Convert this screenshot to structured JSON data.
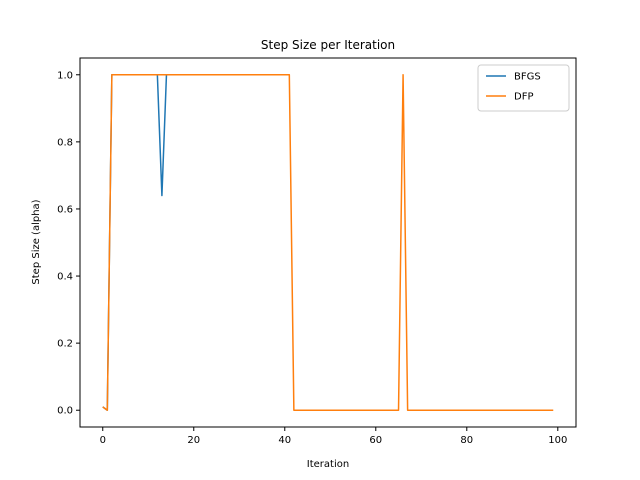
{
  "chart_data": {
    "type": "line",
    "title": "Step Size per Iteration",
    "xlabel": "Iteration",
    "ylabel": "Step Size (alpha)",
    "xlim": [
      -5,
      104
    ],
    "ylim": [
      -0.05,
      1.05
    ],
    "xticks": [
      0,
      20,
      40,
      60,
      80,
      100
    ],
    "yticks": [
      0.0,
      0.2,
      0.4,
      0.6,
      0.8,
      1.0
    ],
    "xtick_labels": [
      "0",
      "20",
      "40",
      "60",
      "80",
      "100"
    ],
    "ytick_labels": [
      "0.0",
      "0.2",
      "0.4",
      "0.6",
      "0.8",
      "1.0"
    ],
    "grid": false,
    "legend": "top-right",
    "series": [
      {
        "name": "BFGS",
        "color": "#1f77b4",
        "x": [
          0,
          1,
          2,
          3,
          4,
          5,
          6,
          7,
          8,
          9,
          10,
          11,
          12,
          13,
          14,
          15,
          16,
          17,
          18,
          19,
          20
        ],
        "y": [
          0.01,
          0.0,
          1.0,
          1.0,
          1.0,
          1.0,
          1.0,
          1.0,
          1.0,
          1.0,
          1.0,
          1.0,
          1.0,
          0.64,
          1.0,
          1.0,
          1.0,
          1.0,
          1.0,
          1.0,
          1.0
        ]
      },
      {
        "name": "DFP",
        "color": "#ff7f0e",
        "x": [
          0,
          1,
          2,
          41,
          42,
          65,
          66,
          67,
          99
        ],
        "y": [
          0.01,
          0.0,
          1.0,
          1.0,
          0.0,
          0.0,
          1.0,
          0.0,
          0.0
        ]
      }
    ]
  }
}
